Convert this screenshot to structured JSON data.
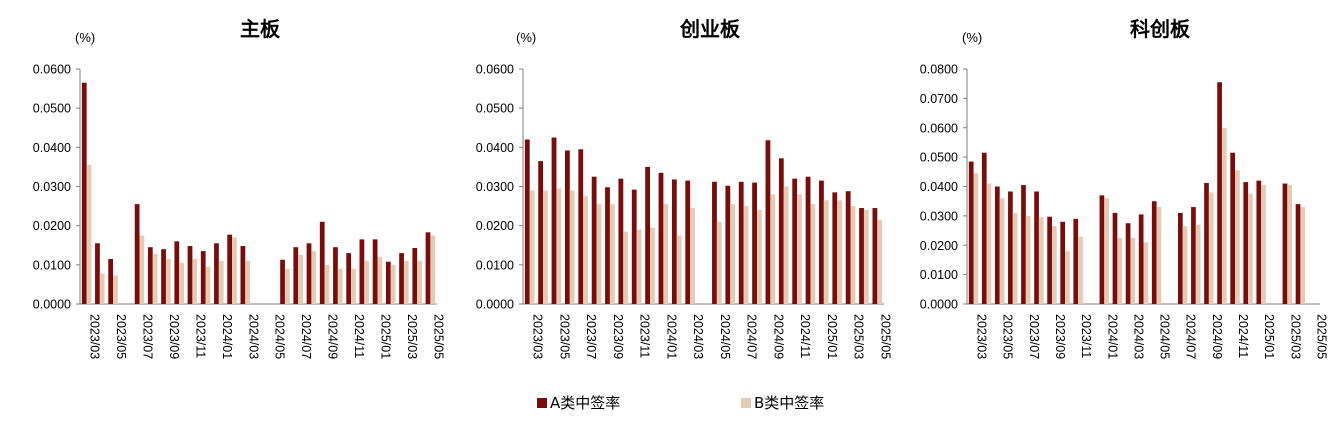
{
  "colors": {
    "a": "#7b0c0c",
    "b": "#e3cbb6",
    "axis": "#7f7f7f"
  },
  "legend": {
    "a_label": "A类中签率",
    "b_label": "B类中签率"
  },
  "chart_data": [
    {
      "type": "bar",
      "title": "主板",
      "unit": "(%)",
      "ylim": [
        0,
        0.06
      ],
      "yticks": [
        "0.0000",
        "0.0100",
        "0.0200",
        "0.0300",
        "0.0400",
        "0.0500",
        "0.0600"
      ],
      "categories": [
        "2023/03",
        "2023/04",
        "2023/05",
        "2023/06",
        "2023/07",
        "2023/08",
        "2023/09",
        "2023/10",
        "2023/11",
        "2023/12",
        "2024/01",
        "2024/02",
        "2024/03",
        "2024/04",
        "2024/05",
        "2024/06",
        "2024/07",
        "2024/08",
        "2024/09",
        "2024/10",
        "2024/11",
        "2024/12",
        "2025/01",
        "2025/02",
        "2025/03",
        "2025/04",
        "2025/05"
      ],
      "xtick_labels": [
        "2023/03",
        "2023/05",
        "2023/07",
        "2023/09",
        "2023/11",
        "2024/01",
        "2024/03",
        "2024/05",
        "2024/07",
        "2024/09",
        "2024/11",
        "2025/01",
        "2025/03",
        "2025/05"
      ],
      "series": [
        {
          "name": "A类中签率",
          "values": [
            0.0565,
            0.0155,
            0.0115,
            null,
            0.0255,
            0.0145,
            0.014,
            0.016,
            0.0148,
            0.0135,
            0.0155,
            0.0177,
            0.0148,
            null,
            null,
            0.0113,
            0.0145,
            0.0155,
            0.021,
            0.0145,
            0.013,
            0.0165,
            0.0165,
            0.0108,
            0.013,
            0.0143,
            0.0183
          ]
        },
        {
          "name": "B类中签率",
          "values": [
            0.0355,
            0.0078,
            0.0073,
            null,
            0.0175,
            0.0128,
            0.0115,
            0.0105,
            0.0115,
            0.0095,
            0.011,
            0.017,
            0.011,
            null,
            null,
            0.009,
            0.0125,
            0.0135,
            0.01,
            0.009,
            0.009,
            0.011,
            0.012,
            0.01,
            0.011,
            0.011,
            0.0175
          ]
        }
      ]
    },
    {
      "type": "bar",
      "title": "创业板",
      "unit": "(%)",
      "ylim": [
        0,
        0.06
      ],
      "yticks": [
        "0.0000",
        "0.0100",
        "0.0200",
        "0.0300",
        "0.0400",
        "0.0500",
        "0.0600"
      ],
      "categories": [
        "2023/03",
        "2023/04",
        "2023/05",
        "2023/06",
        "2023/07",
        "2023/08",
        "2023/09",
        "2023/10",
        "2023/11",
        "2023/12",
        "2024/01",
        "2024/02",
        "2024/03",
        "2024/04",
        "2024/05",
        "2024/06",
        "2024/07",
        "2024/08",
        "2024/09",
        "2024/10",
        "2024/11",
        "2024/12",
        "2025/01",
        "2025/02",
        "2025/03",
        "2025/04",
        "2025/05"
      ],
      "xtick_labels": [
        "2023/03",
        "2023/05",
        "2023/07",
        "2023/09",
        "2023/11",
        "2024/01",
        "2024/03",
        "2024/05",
        "2024/07",
        "2024/09",
        "2024/11",
        "2025/01",
        "2025/03",
        "2025/05"
      ],
      "series": [
        {
          "name": "A类中签率",
          "values": [
            0.042,
            0.0365,
            0.0425,
            0.0392,
            0.0395,
            0.0325,
            0.0298,
            0.032,
            0.0292,
            0.035,
            0.0335,
            0.0318,
            0.0315,
            null,
            0.0312,
            0.0302,
            0.0312,
            0.031,
            0.0418,
            0.0372,
            0.032,
            0.0325,
            0.0315,
            0.0285,
            0.0288,
            0.0245,
            0.0245
          ]
        },
        {
          "name": "B类中签率",
          "values": [
            0.029,
            0.029,
            0.0295,
            0.029,
            0.0275,
            0.0255,
            0.0255,
            0.0185,
            0.019,
            0.0195,
            0.0255,
            0.0175,
            0.0245,
            null,
            0.021,
            0.0255,
            0.025,
            0.024,
            0.028,
            0.03,
            0.028,
            0.0255,
            0.0265,
            0.0265,
            0.025,
            0.024,
            0.0215
          ]
        }
      ]
    },
    {
      "type": "bar",
      "title": "科创板",
      "unit": "(%)",
      "ylim": [
        0,
        0.08
      ],
      "yticks": [
        "0.0000",
        "0.0100",
        "0.0200",
        "0.0300",
        "0.0400",
        "0.0500",
        "0.0600",
        "0.0700",
        "0.0800"
      ],
      "categories": [
        "2023/03",
        "2023/04",
        "2023/05",
        "2023/06",
        "2023/07",
        "2023/08",
        "2023/09",
        "2023/10",
        "2023/11",
        "2023/12",
        "2024/01",
        "2024/02",
        "2024/03",
        "2024/04",
        "2024/05",
        "2024/06",
        "2024/07",
        "2024/08",
        "2024/09",
        "2024/10",
        "2024/11",
        "2024/12",
        "2025/01",
        "2025/02",
        "2025/03",
        "2025/04",
        "2025/05"
      ],
      "xtick_labels": [
        "2023/03",
        "2023/05",
        "2023/07",
        "2023/09",
        "2023/11",
        "2024/01",
        "2024/03",
        "2024/05",
        "2024/07",
        "2024/09",
        "2024/11",
        "2025/01",
        "2025/03",
        "2025/05"
      ],
      "series": [
        {
          "name": "A类中签率",
          "values": [
            0.0485,
            0.0515,
            0.04,
            0.0383,
            0.0405,
            0.0383,
            0.0297,
            0.028,
            0.029,
            null,
            0.037,
            0.031,
            0.0275,
            0.0305,
            0.035,
            null,
            0.031,
            0.033,
            0.0412,
            0.0755,
            0.0515,
            0.0415,
            0.042,
            null,
            0.041,
            0.034,
            null
          ]
        },
        {
          "name": "B类中签率",
          "values": [
            0.0445,
            0.041,
            0.036,
            0.031,
            0.03,
            0.0295,
            0.0265,
            0.018,
            0.023,
            null,
            0.036,
            0.0225,
            0.0225,
            0.021,
            0.033,
            null,
            0.0265,
            0.027,
            0.038,
            0.06,
            0.0455,
            0.0375,
            0.0405,
            null,
            0.0405,
            0.033,
            null
          ]
        }
      ]
    }
  ]
}
